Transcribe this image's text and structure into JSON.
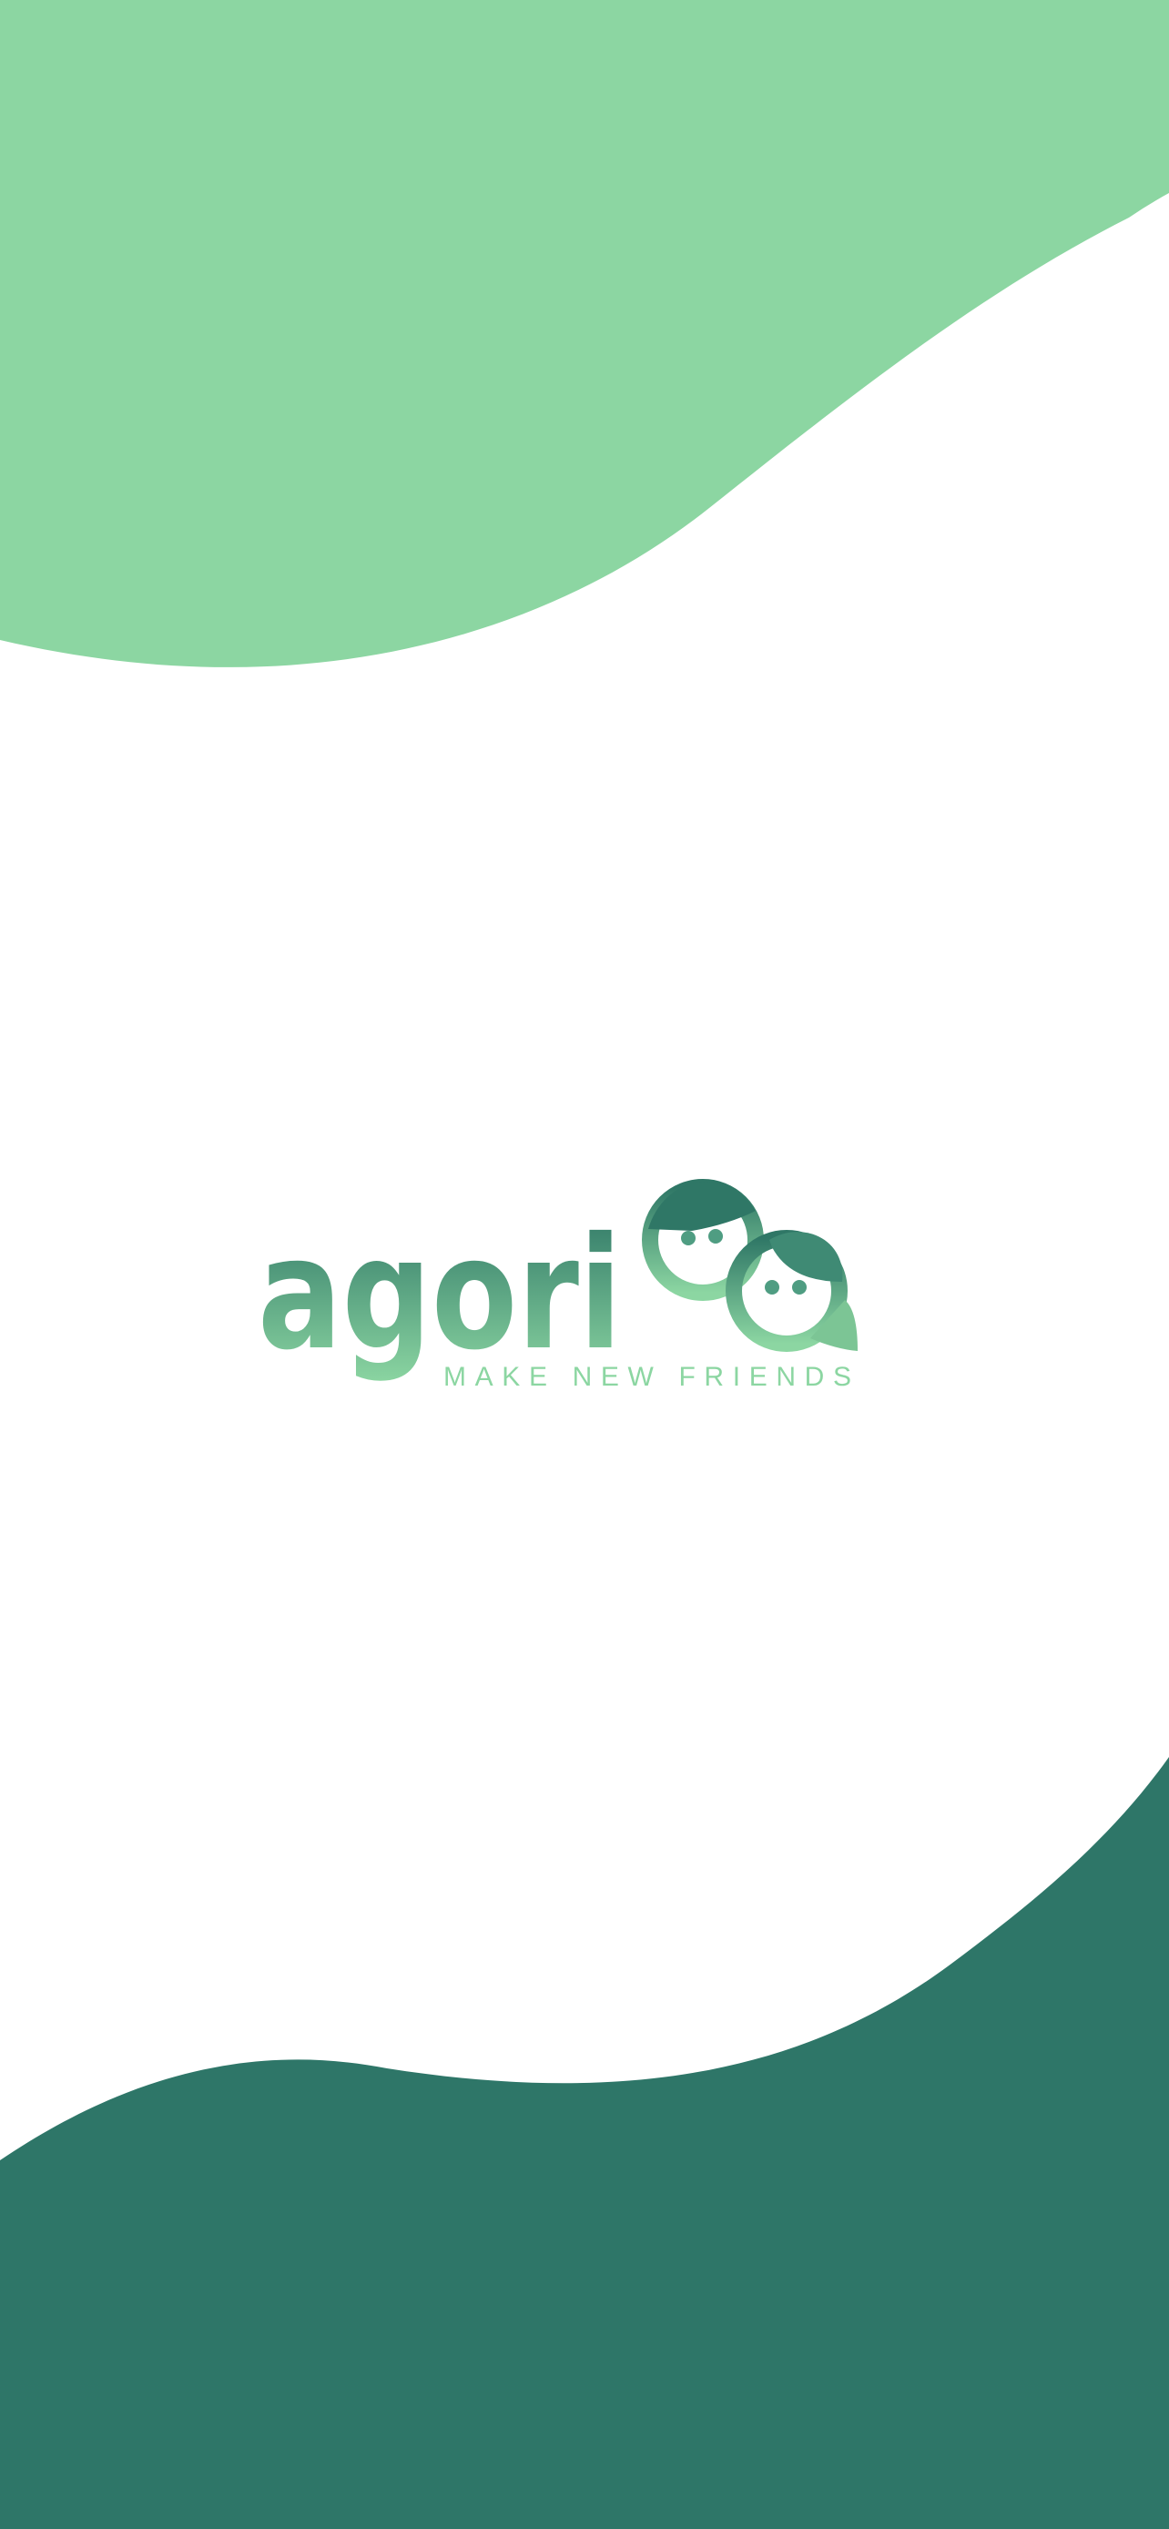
{
  "logo": {
    "name": "agori",
    "tagline": "MAKE NEW FRIENDS"
  }
}
